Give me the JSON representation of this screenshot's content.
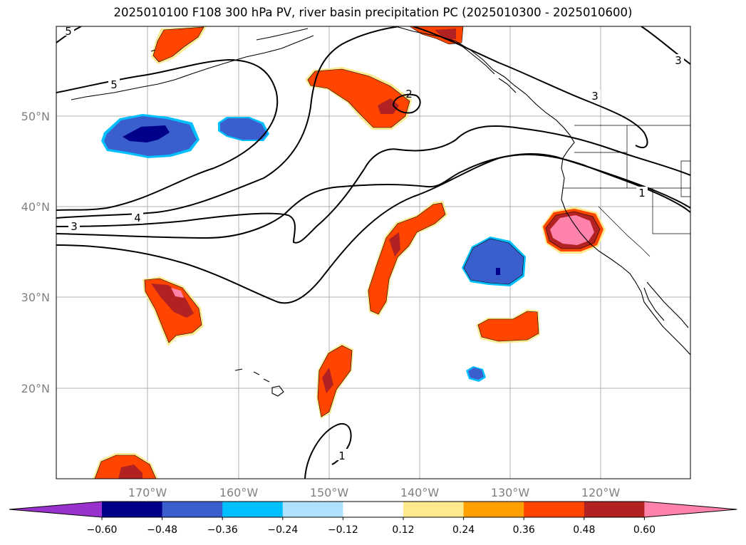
{
  "title": "2025010100 F108 300 hPa PV, river basin precipitation PC (2025010300 - 2025010600)",
  "map": {
    "lat_labels": [
      "50°N",
      "40°N",
      "30°N",
      "20°N"
    ],
    "lon_labels": [
      "170°W",
      "160°W",
      "150°W",
      "140°W",
      "130°W",
      "120°W"
    ],
    "contour_labels": [
      "5",
      "5",
      "4",
      "3",
      "2",
      "3",
      "3",
      "1",
      "1"
    ]
  },
  "colorbar": {
    "ticks": [
      "−0.60",
      "−0.48",
      "−0.36",
      "−0.24",
      "−0.12",
      "0.12",
      "0.24",
      "0.36",
      "0.48",
      "0.60"
    ],
    "colors": [
      "#9932cc",
      "#00008b",
      "#3a5fcd",
      "#00bfff",
      "#b0e2ff",
      "#ffffff",
      "#ffe98f",
      "#ffa000",
      "#ff4500",
      "#b22222",
      "#ff82ab"
    ]
  }
}
